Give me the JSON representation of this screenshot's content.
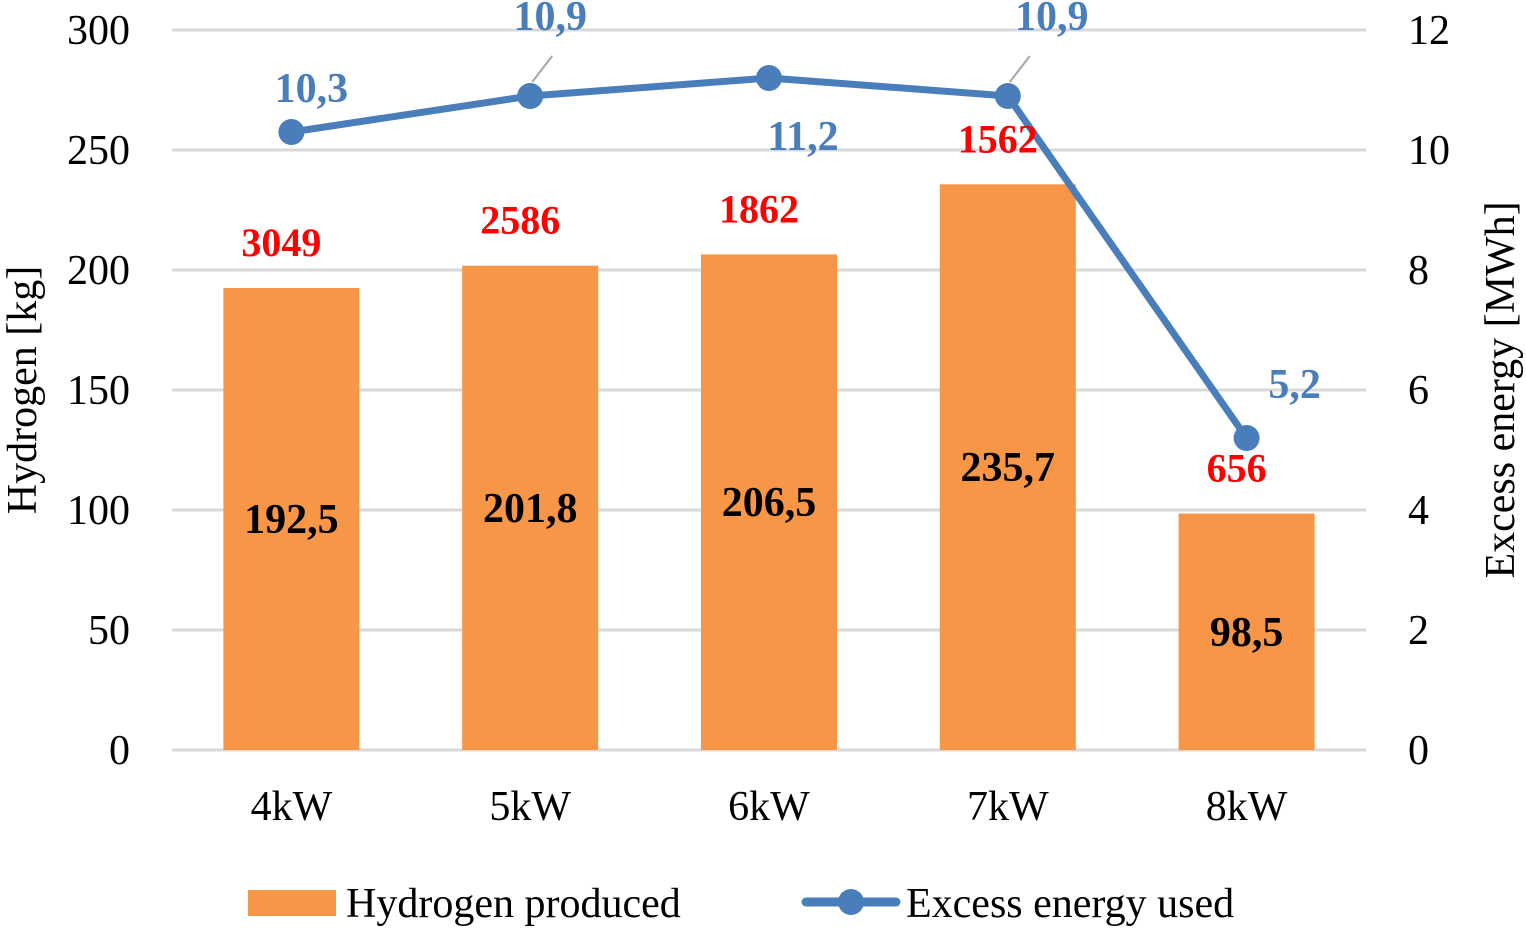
{
  "chart_data": {
    "type": "bar",
    "categories": [
      "4kW",
      "5kW",
      "6kW",
      "7kW",
      "8kW"
    ],
    "series": [
      {
        "name": "Hydrogen produced",
        "type": "bar",
        "axis": "left",
        "values": [
          192.5,
          201.8,
          206.5,
          235.7,
          98.5
        ],
        "value_labels": [
          "192,5",
          "201,8",
          "206,5",
          "235,7",
          "98,5"
        ],
        "color": "#f79646"
      },
      {
        "name": "Excess energy used",
        "type": "line",
        "axis": "right",
        "values": [
          10.3,
          10.9,
          11.2,
          10.9,
          5.2
        ],
        "value_labels": [
          "10,3",
          "10,9",
          "11,2",
          "10,9",
          "5,2"
        ],
        "color": "#4a7ebb"
      }
    ],
    "bar_top_annotations": [
      "3049",
      "2586",
      "1862",
      "1562",
      "656"
    ],
    "annotation_color": "#ff0000",
    "ylabel": "Hydrogen [kg]",
    "y2label": "Excess energy [MWh]",
    "ylim": [
      0,
      300
    ],
    "y2lim": [
      0,
      12
    ],
    "yticks": [
      "0",
      "50",
      "100",
      "150",
      "200",
      "250",
      "300"
    ],
    "y2ticks": [
      "0",
      "2",
      "4",
      "6",
      "8",
      "10",
      "12"
    ],
    "grid": true,
    "legend_position": "bottom",
    "gridline_color": "#d9d9d9"
  }
}
